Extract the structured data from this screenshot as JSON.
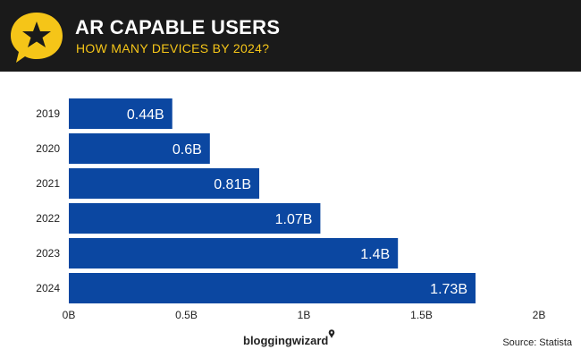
{
  "header": {
    "title": "AR CAPABLE USERS",
    "subtitle": "HOW MANY DEVICES BY 2024?",
    "icon": "star-speech-bubble-icon"
  },
  "colors": {
    "header_bg": "#1a1a1a",
    "accent": "#f5c518",
    "bar": "#0b47a1",
    "bar_label": "#ffffff"
  },
  "chart_data": {
    "type": "bar",
    "orientation": "horizontal",
    "categories": [
      "2019",
      "2020",
      "2021",
      "2022",
      "2023",
      "2024"
    ],
    "values": [
      0.44,
      0.6,
      0.81,
      1.07,
      1.4,
      1.73
    ],
    "value_labels": [
      "0.44B",
      "0.6B",
      "0.81B",
      "1.07B",
      "1.4B",
      "1.73B"
    ],
    "xlim": [
      0,
      2
    ],
    "xticks": [
      0,
      0.5,
      1,
      1.5,
      2
    ],
    "xtick_labels": [
      "0B",
      "0.5B",
      "1B",
      "1.5B",
      "2B"
    ],
    "grid": false,
    "legend": "none"
  },
  "footer": {
    "brand": "bloggingwizard",
    "source": "Source: Statista"
  }
}
